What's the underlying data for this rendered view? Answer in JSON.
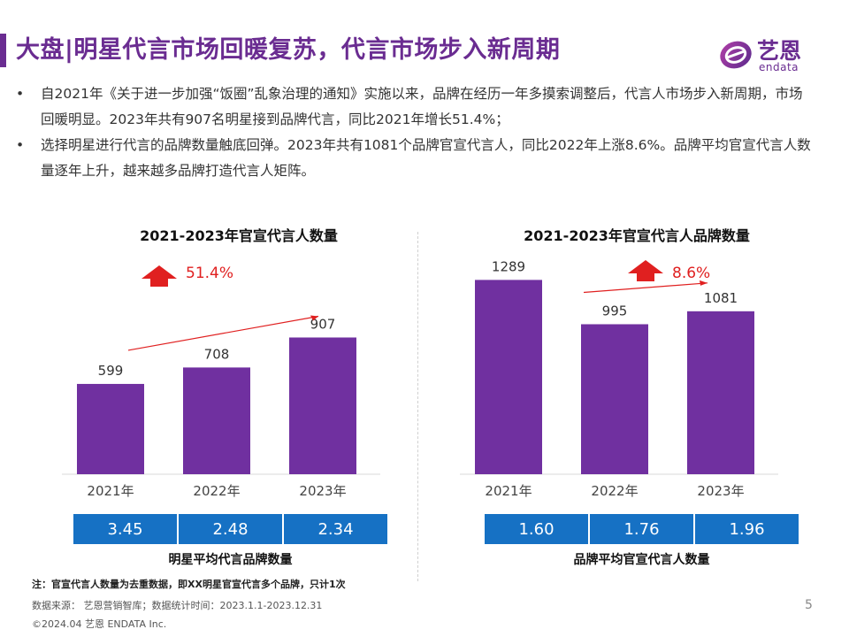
{
  "header": {
    "title": "大盘|明星代言市场回暖复苏，代言市场步入新周期",
    "logo_cn": "艺恩",
    "logo_en": "endata"
  },
  "bullets": [
    "自2021年《关于进一步加强“饭圈”乱象治理的通知》实施以来，品牌在经历一年多摸索调整后，代言人市场步入新周期，市场回暖明显。2023年共有907名明星接到品牌代言，同比2021年增长51.4%；",
    "选择明星进行代言的品牌数量触底回弹。2023年共有1081个品牌官宣代言人，同比2022年上涨8.6%。品牌平均官宣代言人数量逐年上升，越来越多品牌打造代言人矩阵。"
  ],
  "bullet_symbol": "•",
  "colors": {
    "bar": "#7030a0",
    "accent": "#6a2c91",
    "stat_bg": "#1671c4",
    "arrow": "#e02020",
    "growth_text": "#e02020"
  },
  "chart_data": [
    {
      "type": "bar",
      "title": "2021-2023年官宣代言人数量",
      "categories": [
        "2021年",
        "2022年",
        "2023年"
      ],
      "values": [
        599,
        708,
        907
      ],
      "growth_label": "51.4%",
      "ylim": [
        0,
        1350
      ],
      "grid": false
    },
    {
      "type": "bar",
      "title": "2021-2023年官宣代言人品牌数量",
      "categories": [
        "2021年",
        "2022年",
        "2023年"
      ],
      "values": [
        1289,
        995,
        1081
      ],
      "growth_label": "8.6%",
      "ylim": [
        0,
        1350
      ],
      "grid": false
    }
  ],
  "stats": [
    {
      "values": [
        "3.45",
        "2.48",
        "2.34"
      ],
      "label": "明星平均代言品牌数量"
    },
    {
      "values": [
        "1.60",
        "1.76",
        "1.96"
      ],
      "label": "品牌平均官宣代言人数量"
    }
  ],
  "footer": {
    "note": "注：官宣代言人数量为去重数据，即XX明星官宣代言多个品牌，只计1次",
    "source": "数据来源：  艺恩营销智库；数据统计时间：2023.1.1-2023.12.31",
    "copyright": "©2024.04 艺恩 ENDATA Inc.",
    "page": "5"
  }
}
